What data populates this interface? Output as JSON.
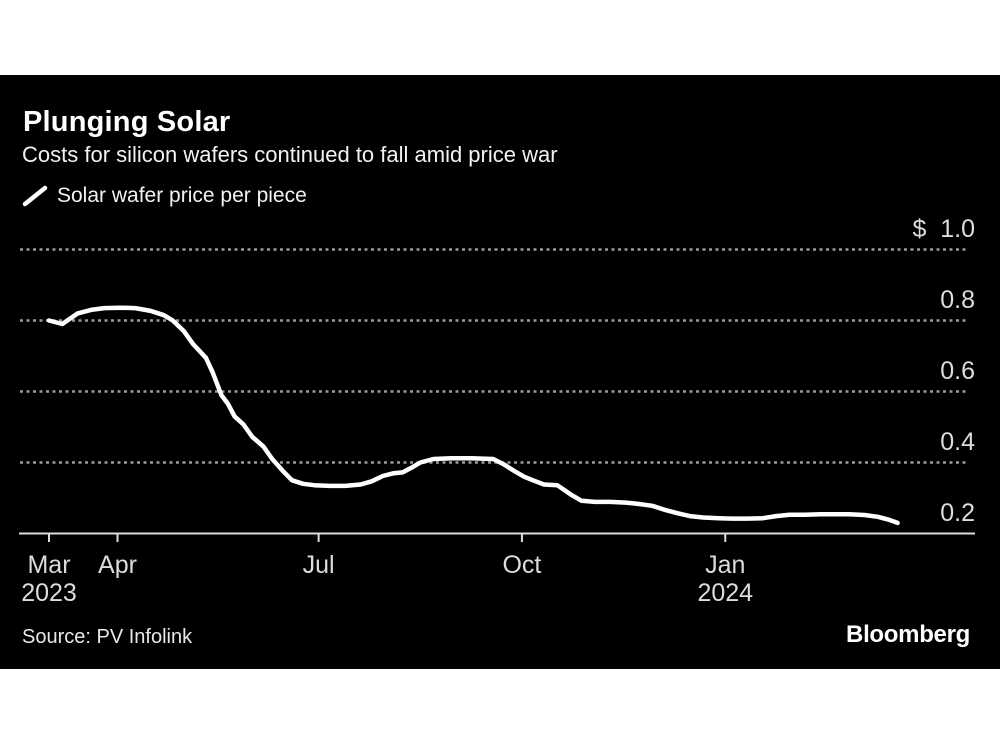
{
  "page": {
    "background": "#ffffff",
    "card_background": "#000000"
  },
  "header": {
    "title": "Plunging Solar",
    "subtitle": "Costs for silicon wafers continued to fall amid price war"
  },
  "legend": {
    "label": "Solar wafer price per piece",
    "line_color": "#ffffff"
  },
  "footer": {
    "source": "Source: PV Infolink",
    "brand": "Bloomberg"
  },
  "colors": {
    "grid": "#9a9a9a",
    "axis": "#dcdcdc",
    "tick_label": "#dcdcdc",
    "series_line": "#ffffff"
  },
  "chart_data": {
    "type": "line",
    "title": "Plunging Solar",
    "subtitle": "Costs for silicon wafers continued to fall amid price war",
    "xlabel": "",
    "ylabel": "Solar wafer price per piece ($)",
    "grid": "dotted horizontal",
    "legend_position": "top-left",
    "x_axis": {
      "start": "2023-03-01",
      "end": "2024-03-24",
      "ticks": [
        {
          "date": "2023-03-01",
          "label": "Mar",
          "year": "2023"
        },
        {
          "date": "2023-04-01",
          "label": "Apr",
          "year": ""
        },
        {
          "date": "2023-07-01",
          "label": "Jul",
          "year": ""
        },
        {
          "date": "2023-10-01",
          "label": "Oct",
          "year": ""
        },
        {
          "date": "2024-01-01",
          "label": "Jan",
          "year": "2024"
        }
      ]
    },
    "y_axis": {
      "min": 0.2,
      "max": 1.0,
      "unit_prefix": "$",
      "gridline_values": [
        1.0,
        0.8,
        0.6,
        0.4
      ],
      "baseline_value": 0.2,
      "tick_labels": [
        {
          "value": 1.0,
          "label": "$  1.0"
        },
        {
          "value": 0.8,
          "label": "0.8"
        },
        {
          "value": 0.6,
          "label": "0.6"
        },
        {
          "value": 0.4,
          "label": "0.4"
        },
        {
          "value": 0.2,
          "label": "0.2"
        }
      ]
    },
    "series": [
      {
        "name": "Solar wafer price per piece",
        "color": "#ffffff",
        "points": [
          [
            "2023-03-01",
            0.8
          ],
          [
            "2023-03-07",
            0.79
          ],
          [
            "2023-03-14",
            0.82
          ],
          [
            "2023-03-20",
            0.83
          ],
          [
            "2023-03-26",
            0.835
          ],
          [
            "2023-04-02",
            0.836
          ],
          [
            "2023-04-09",
            0.835
          ],
          [
            "2023-04-16",
            0.827
          ],
          [
            "2023-04-22",
            0.815
          ],
          [
            "2023-04-26",
            0.8
          ],
          [
            "2023-05-01",
            0.77
          ],
          [
            "2023-05-05",
            0.735
          ],
          [
            "2023-05-11",
            0.695
          ],
          [
            "2023-05-14",
            0.655
          ],
          [
            "2023-05-18",
            0.59
          ],
          [
            "2023-05-21",
            0.565
          ],
          [
            "2023-05-24",
            0.53
          ],
          [
            "2023-05-28",
            0.507
          ],
          [
            "2023-06-01",
            0.472
          ],
          [
            "2023-06-06",
            0.445
          ],
          [
            "2023-06-10",
            0.41
          ],
          [
            "2023-06-15",
            0.375
          ],
          [
            "2023-06-19",
            0.35
          ],
          [
            "2023-06-24",
            0.34
          ],
          [
            "2023-06-29",
            0.336
          ],
          [
            "2023-07-06",
            0.334
          ],
          [
            "2023-07-13",
            0.334
          ],
          [
            "2023-07-20",
            0.338
          ],
          [
            "2023-07-25",
            0.347
          ],
          [
            "2023-07-30",
            0.362
          ],
          [
            "2023-08-04",
            0.37
          ],
          [
            "2023-08-08",
            0.372
          ],
          [
            "2023-08-12",
            0.385
          ],
          [
            "2023-08-16",
            0.4
          ],
          [
            "2023-08-22",
            0.41
          ],
          [
            "2023-08-30",
            0.412
          ],
          [
            "2023-09-08",
            0.412
          ],
          [
            "2023-09-18",
            0.41
          ],
          [
            "2023-09-23",
            0.394
          ],
          [
            "2023-09-27",
            0.378
          ],
          [
            "2023-10-02",
            0.36
          ],
          [
            "2023-10-06",
            0.35
          ],
          [
            "2023-10-11",
            0.338
          ],
          [
            "2023-10-17",
            0.336
          ],
          [
            "2023-10-23",
            0.31
          ],
          [
            "2023-10-28",
            0.292
          ],
          [
            "2023-11-03",
            0.289
          ],
          [
            "2023-11-10",
            0.289
          ],
          [
            "2023-11-17",
            0.287
          ],
          [
            "2023-11-23",
            0.283
          ],
          [
            "2023-11-29",
            0.278
          ],
          [
            "2023-12-05",
            0.266
          ],
          [
            "2023-12-11",
            0.256
          ],
          [
            "2023-12-16",
            0.249
          ],
          [
            "2023-12-22",
            0.245
          ],
          [
            "2023-12-29",
            0.243
          ],
          [
            "2024-01-04",
            0.242
          ],
          [
            "2024-01-11",
            0.242
          ],
          [
            "2024-01-18",
            0.243
          ],
          [
            "2024-01-24",
            0.249
          ],
          [
            "2024-01-30",
            0.253
          ],
          [
            "2024-02-06",
            0.253
          ],
          [
            "2024-02-13",
            0.254
          ],
          [
            "2024-02-20",
            0.254
          ],
          [
            "2024-02-26",
            0.254
          ],
          [
            "2024-03-04",
            0.252
          ],
          [
            "2024-03-10",
            0.247
          ],
          [
            "2024-03-15",
            0.239
          ],
          [
            "2024-03-19",
            0.23
          ]
        ]
      }
    ]
  }
}
